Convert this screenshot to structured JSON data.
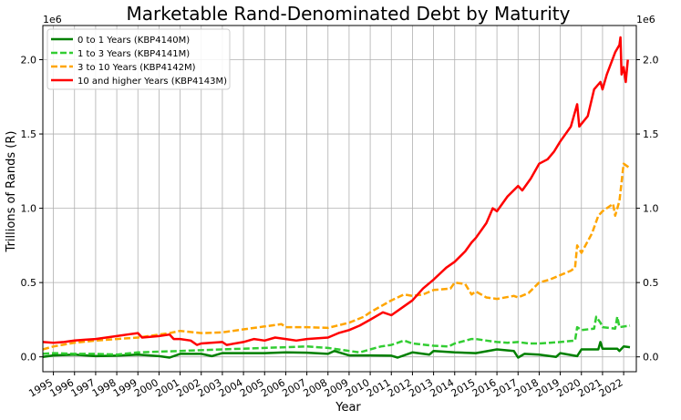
{
  "chart_data": {
    "type": "line",
    "title": "Marketable Rand-Denominated Debt by Maturity",
    "xlabel": "Year",
    "ylabel": "Trillions of Rands (R)",
    "offset_label_left": "1e6",
    "offset_label_right": "1e6",
    "xlim": [
      1994.5,
      2022.6
    ],
    "ylim": [
      -100000,
      2230000
    ],
    "y_ticks": [
      0,
      500000,
      1000000,
      1500000,
      2000000
    ],
    "y_tick_labels": [
      "0.0",
      "0.5",
      "1.0",
      "1.5",
      "2.0"
    ],
    "x_ticks": [
      1995,
      1996,
      1997,
      1998,
      1999,
      2000,
      2001,
      2002,
      2003,
      2004,
      2005,
      2006,
      2007,
      2008,
      2009,
      2010,
      2011,
      2012,
      2013,
      2014,
      2015,
      2016,
      2017,
      2018,
      2019,
      2020,
      2021,
      2022
    ],
    "x_tick_labels": [
      "1995",
      "1996",
      "1997",
      "1998",
      "1999",
      "2000",
      "2001",
      "2002",
      "2003",
      "2004",
      "2005",
      "2006",
      "2007",
      "2008",
      "2009",
      "2010",
      "2011",
      "2012",
      "2013",
      "2014",
      "2015",
      "2016",
      "2017",
      "2018",
      "2019",
      "2020",
      "2021",
      "2022"
    ],
    "grid": true,
    "legend_position": "top-left",
    "series": [
      {
        "name": "0 to 1 Years (KBP4140M)",
        "color": "#008000",
        "dash": "solid",
        "points": [
          [
            1994.5,
            0
          ],
          [
            1995,
            10000
          ],
          [
            1996,
            15000
          ],
          [
            1997,
            5000
          ],
          [
            1998,
            8000
          ],
          [
            1999,
            15000
          ],
          [
            2000,
            5000
          ],
          [
            2000.5,
            -5000
          ],
          [
            2001,
            20000
          ],
          [
            2002,
            20000
          ],
          [
            2002.5,
            5000
          ],
          [
            2003,
            25000
          ],
          [
            2004,
            25000
          ],
          [
            2005,
            25000
          ],
          [
            2006,
            30000
          ],
          [
            2007,
            28000
          ],
          [
            2008,
            20000
          ],
          [
            2008.3,
            40000
          ],
          [
            2009,
            10000
          ],
          [
            2010,
            10000
          ],
          [
            2011,
            8000
          ],
          [
            2011.3,
            -5000
          ],
          [
            2012,
            30000
          ],
          [
            2012.8,
            15000
          ],
          [
            2013,
            40000
          ],
          [
            2014,
            30000
          ],
          [
            2015,
            25000
          ],
          [
            2016,
            50000
          ],
          [
            2016.8,
            40000
          ],
          [
            2017,
            -5000
          ],
          [
            2017.3,
            20000
          ],
          [
            2018,
            15000
          ],
          [
            2018.8,
            0
          ],
          [
            2019,
            25000
          ],
          [
            2019.8,
            5000
          ],
          [
            2020,
            50000
          ],
          [
            2020.8,
            50000
          ],
          [
            2020.9,
            100000
          ],
          [
            2021,
            55000
          ],
          [
            2021.7,
            55000
          ],
          [
            2021.8,
            40000
          ],
          [
            2022,
            70000
          ],
          [
            2022.3,
            65000
          ]
        ]
      },
      {
        "name": "1 to 3 Years (KBP4141M)",
        "color": "#32cd32",
        "dash": "dashed",
        "points": [
          [
            1994.5,
            20000
          ],
          [
            1995,
            25000
          ],
          [
            1996,
            20000
          ],
          [
            1997,
            20000
          ],
          [
            1998,
            15000
          ],
          [
            1999,
            30000
          ],
          [
            2000,
            35000
          ],
          [
            2001,
            40000
          ],
          [
            2002,
            45000
          ],
          [
            2003,
            50000
          ],
          [
            2004,
            55000
          ],
          [
            2005,
            60000
          ],
          [
            2006,
            65000
          ],
          [
            2007,
            70000
          ],
          [
            2008,
            60000
          ],
          [
            2008.5,
            50000
          ],
          [
            2009,
            40000
          ],
          [
            2009.5,
            30000
          ],
          [
            2010,
            50000
          ],
          [
            2010.5,
            70000
          ],
          [
            2011,
            80000
          ],
          [
            2011.6,
            110000
          ],
          [
            2012,
            90000
          ],
          [
            2013,
            75000
          ],
          [
            2013.7,
            70000
          ],
          [
            2014,
            90000
          ],
          [
            2014.8,
            120000
          ],
          [
            2015,
            120000
          ],
          [
            2015.5,
            110000
          ],
          [
            2016,
            100000
          ],
          [
            2016.5,
            95000
          ],
          [
            2017,
            100000
          ],
          [
            2017.5,
            90000
          ],
          [
            2018,
            90000
          ],
          [
            2018.5,
            95000
          ],
          [
            2019,
            100000
          ],
          [
            2019.7,
            110000
          ],
          [
            2019.8,
            200000
          ],
          [
            2020,
            180000
          ],
          [
            2020.6,
            190000
          ],
          [
            2020.7,
            270000
          ],
          [
            2020.9,
            230000
          ],
          [
            2021,
            200000
          ],
          [
            2021.6,
            190000
          ],
          [
            2021.7,
            270000
          ],
          [
            2021.8,
            200000
          ],
          [
            2022.3,
            210000
          ]
        ]
      },
      {
        "name": "3 to 10 Years (KBP4142M)",
        "color": "#ffa500",
        "dash": "dashed",
        "points": [
          [
            1994.5,
            50000
          ],
          [
            1995,
            70000
          ],
          [
            1996,
            95000
          ],
          [
            1997,
            110000
          ],
          [
            1998,
            120000
          ],
          [
            1999,
            130000
          ],
          [
            1999.5,
            140000
          ],
          [
            2000,
            150000
          ],
          [
            2000.5,
            160000
          ],
          [
            2001,
            175000
          ],
          [
            2002,
            160000
          ],
          [
            2003,
            165000
          ],
          [
            2004,
            185000
          ],
          [
            2005,
            205000
          ],
          [
            2005.8,
            220000
          ],
          [
            2006,
            200000
          ],
          [
            2007,
            200000
          ],
          [
            2008,
            195000
          ],
          [
            2009,
            230000
          ],
          [
            2009.7,
            270000
          ],
          [
            2010,
            300000
          ],
          [
            2010.5,
            340000
          ],
          [
            2011,
            380000
          ],
          [
            2011.6,
            420000
          ],
          [
            2012,
            410000
          ],
          [
            2012.5,
            420000
          ],
          [
            2013,
            450000
          ],
          [
            2013.8,
            460000
          ],
          [
            2014,
            500000
          ],
          [
            2014.5,
            490000
          ],
          [
            2014.8,
            420000
          ],
          [
            2015,
            440000
          ],
          [
            2015.5,
            400000
          ],
          [
            2016,
            390000
          ],
          [
            2016.8,
            410000
          ],
          [
            2017,
            400000
          ],
          [
            2017.5,
            430000
          ],
          [
            2018,
            500000
          ],
          [
            2018.5,
            520000
          ],
          [
            2019,
            550000
          ],
          [
            2019.5,
            580000
          ],
          [
            2019.7,
            600000
          ],
          [
            2019.8,
            750000
          ],
          [
            2020,
            700000
          ],
          [
            2020.5,
            830000
          ],
          [
            2020.8,
            950000
          ],
          [
            2021,
            980000
          ],
          [
            2021.5,
            1030000
          ],
          [
            2021.6,
            950000
          ],
          [
            2021.8,
            1050000
          ],
          [
            2022,
            1300000
          ],
          [
            2022.3,
            1270000
          ]
        ]
      },
      {
        "name": "10 and higher Years (KBP4143M)",
        "color": "#ff0000",
        "dash": "solid",
        "points": [
          [
            1994.5,
            100000
          ],
          [
            1995,
            95000
          ],
          [
            1995.5,
            100000
          ],
          [
            1996,
            110000
          ],
          [
            1996.5,
            115000
          ],
          [
            1997,
            120000
          ],
          [
            1998,
            140000
          ],
          [
            1998.5,
            150000
          ],
          [
            1999,
            160000
          ],
          [
            1999.2,
            130000
          ],
          [
            2000,
            140000
          ],
          [
            2000.5,
            150000
          ],
          [
            2000.7,
            120000
          ],
          [
            2001,
            120000
          ],
          [
            2001.5,
            110000
          ],
          [
            2001.8,
            80000
          ],
          [
            2002,
            90000
          ],
          [
            2003,
            100000
          ],
          [
            2003.2,
            80000
          ],
          [
            2004,
            100000
          ],
          [
            2004.5,
            120000
          ],
          [
            2005,
            110000
          ],
          [
            2005.5,
            130000
          ],
          [
            2006,
            120000
          ],
          [
            2006.5,
            110000
          ],
          [
            2007,
            120000
          ],
          [
            2008,
            130000
          ],
          [
            2008.5,
            160000
          ],
          [
            2009,
            180000
          ],
          [
            2009.5,
            210000
          ],
          [
            2010,
            250000
          ],
          [
            2010.6,
            300000
          ],
          [
            2011,
            280000
          ],
          [
            2011.6,
            340000
          ],
          [
            2012,
            380000
          ],
          [
            2012.5,
            460000
          ],
          [
            2013,
            520000
          ],
          [
            2013.6,
            600000
          ],
          [
            2014,
            640000
          ],
          [
            2014.5,
            710000
          ],
          [
            2014.8,
            770000
          ],
          [
            2015,
            800000
          ],
          [
            2015.5,
            900000
          ],
          [
            2015.8,
            1000000
          ],
          [
            2016,
            980000
          ],
          [
            2016.5,
            1080000
          ],
          [
            2017,
            1150000
          ],
          [
            2017.2,
            1120000
          ],
          [
            2017.6,
            1200000
          ],
          [
            2018,
            1300000
          ],
          [
            2018.4,
            1330000
          ],
          [
            2018.7,
            1380000
          ],
          [
            2019,
            1450000
          ],
          [
            2019.5,
            1550000
          ],
          [
            2019.8,
            1700000
          ],
          [
            2019.9,
            1550000
          ],
          [
            2020.3,
            1620000
          ],
          [
            2020.6,
            1800000
          ],
          [
            2020.9,
            1850000
          ],
          [
            2021,
            1800000
          ],
          [
            2021.2,
            1900000
          ],
          [
            2021.6,
            2050000
          ],
          [
            2021.8,
            2100000
          ],
          [
            2021.85,
            2150000
          ],
          [
            2021.9,
            1900000
          ],
          [
            2022,
            1950000
          ],
          [
            2022.1,
            1850000
          ],
          [
            2022.2,
            2000000
          ]
        ]
      }
    ]
  }
}
